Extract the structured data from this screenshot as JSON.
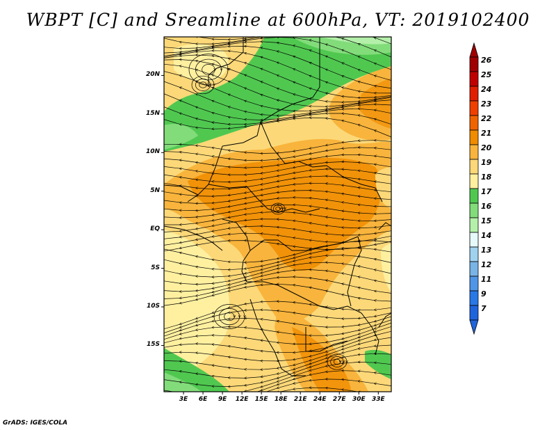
{
  "title": "WBPT [C] and Sreamline at 600hPa, VT: 2019102400",
  "credit": "GrADS: IGES/COLA",
  "map": {
    "lon_range": [
      0,
      35
    ],
    "lat_range": [
      -21,
      25
    ],
    "lat_ticks": [
      {
        "value": 20,
        "label": "20N"
      },
      {
        "value": 15,
        "label": "15N"
      },
      {
        "value": 10,
        "label": "10N"
      },
      {
        "value": 5,
        "label": "5N"
      },
      {
        "value": 0,
        "label": "EQ"
      },
      {
        "value": -5,
        "label": "5S"
      },
      {
        "value": -10,
        "label": "10S"
      },
      {
        "value": -15,
        "label": "15S"
      }
    ],
    "lon_ticks": [
      {
        "value": 3,
        "label": "3E"
      },
      {
        "value": 6,
        "label": "6E"
      },
      {
        "value": 9,
        "label": "9E"
      },
      {
        "value": 12,
        "label": "12E"
      },
      {
        "value": 15,
        "label": "15E"
      },
      {
        "value": 18,
        "label": "18E"
      },
      {
        "value": 21,
        "label": "21E"
      },
      {
        "value": 24,
        "label": "24E"
      },
      {
        "value": 27,
        "label": "27E"
      },
      {
        "value": 30,
        "label": "30E"
      },
      {
        "value": 33,
        "label": "33E"
      }
    ]
  },
  "colorbar": {
    "levels": [
      "26",
      "25",
      "24",
      "23",
      "22",
      "21",
      "20",
      "19",
      "18",
      "17",
      "16",
      "15",
      "14",
      "13",
      "12",
      "11",
      "9",
      "7"
    ],
    "colors": [
      "#a00000",
      "#c00000",
      "#e01e00",
      "#f04000",
      "#f06400",
      "#f08c00",
      "#f8b43c",
      "#fcd878",
      "#fff0a0",
      "#50c850",
      "#82dc7a",
      "#b4f0aa",
      "#e6fafa",
      "#a0d2f0",
      "#78b4e6",
      "#5096e6",
      "#2878e6",
      "#1e64dc"
    ],
    "top_arrow_color": "#a00000",
    "bottom_arrow_color": "#1e64dc"
  }
}
